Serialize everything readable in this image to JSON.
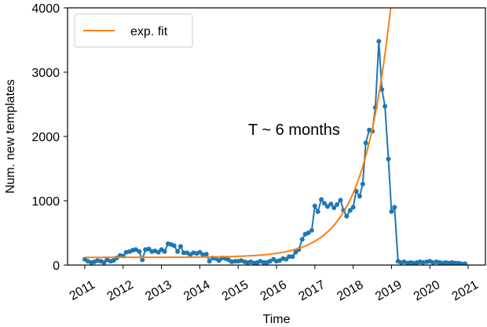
{
  "chart_data": {
    "type": "line",
    "xlabel": "Time",
    "ylabel": "Num. new templates",
    "xlim": [
      2010.55,
      2021.45
    ],
    "ylim": [
      0,
      4000
    ],
    "xticks": [
      2011,
      2012,
      2013,
      2014,
      2015,
      2016,
      2017,
      2018,
      2019,
      2020,
      2021
    ],
    "xtick_labels": [
      "2011",
      "2012",
      "2013",
      "2014",
      "2015",
      "2016",
      "2017",
      "2018",
      "2019",
      "2020",
      "2021"
    ],
    "yticks": [
      0,
      1000,
      2000,
      3000,
      4000
    ],
    "ytick_labels": [
      "0",
      "1000",
      "2000",
      "3000",
      "4000"
    ],
    "annotation": "T ~ 6 months",
    "legend": {
      "position": "top-left",
      "entries": [
        "exp. fit"
      ]
    },
    "grid": false,
    "series": [
      {
        "color": "#1f77b4",
        "style": "line+markers",
        "points": [
          [
            2011.0,
            90
          ],
          [
            2011.08,
            60
          ],
          [
            2011.17,
            40
          ],
          [
            2011.25,
            50
          ],
          [
            2011.33,
            70
          ],
          [
            2011.42,
            60
          ],
          [
            2011.5,
            40
          ],
          [
            2011.58,
            80
          ],
          [
            2011.67,
            60
          ],
          [
            2011.75,
            70
          ],
          [
            2011.83,
            110
          ],
          [
            2011.92,
            150
          ],
          [
            2012.0,
            140
          ],
          [
            2012.08,
            200
          ],
          [
            2012.17,
            210
          ],
          [
            2012.25,
            230
          ],
          [
            2012.33,
            240
          ],
          [
            2012.42,
            210
          ],
          [
            2012.5,
            80
          ],
          [
            2012.58,
            240
          ],
          [
            2012.67,
            250
          ],
          [
            2012.75,
            210
          ],
          [
            2012.83,
            220
          ],
          [
            2012.92,
            200
          ],
          [
            2013.0,
            240
          ],
          [
            2013.08,
            210
          ],
          [
            2013.17,
            330
          ],
          [
            2013.25,
            320
          ],
          [
            2013.33,
            300
          ],
          [
            2013.42,
            210
          ],
          [
            2013.5,
            290
          ],
          [
            2013.58,
            190
          ],
          [
            2013.67,
            190
          ],
          [
            2013.75,
            160
          ],
          [
            2013.83,
            190
          ],
          [
            2013.92,
            180
          ],
          [
            2014.0,
            200
          ],
          [
            2014.08,
            160
          ],
          [
            2014.17,
            170
          ],
          [
            2014.25,
            60
          ],
          [
            2014.33,
            110
          ],
          [
            2014.42,
            100
          ],
          [
            2014.5,
            70
          ],
          [
            2014.58,
            110
          ],
          [
            2014.67,
            100
          ],
          [
            2014.75,
            80
          ],
          [
            2014.83,
            50
          ],
          [
            2014.92,
            60
          ],
          [
            2015.0,
            60
          ],
          [
            2015.08,
            70
          ],
          [
            2015.17,
            50
          ],
          [
            2015.25,
            40
          ],
          [
            2015.33,
            50
          ],
          [
            2015.42,
            30
          ],
          [
            2015.5,
            40
          ],
          [
            2015.58,
            60
          ],
          [
            2015.67,
            40
          ],
          [
            2015.75,
            40
          ],
          [
            2015.83,
            60
          ],
          [
            2015.92,
            90
          ],
          [
            2016.0,
            60
          ],
          [
            2016.08,
            70
          ],
          [
            2016.17,
            100
          ],
          [
            2016.25,
            90
          ],
          [
            2016.33,
            130
          ],
          [
            2016.42,
            130
          ],
          [
            2016.5,
            200
          ],
          [
            2016.58,
            240
          ],
          [
            2016.67,
            400
          ],
          [
            2016.75,
            480
          ],
          [
            2016.83,
            500
          ],
          [
            2016.92,
            540
          ],
          [
            2017.0,
            920
          ],
          [
            2017.08,
            830
          ],
          [
            2017.17,
            1020
          ],
          [
            2017.25,
            960
          ],
          [
            2017.33,
            910
          ],
          [
            2017.42,
            950
          ],
          [
            2017.5,
            890
          ],
          [
            2017.58,
            940
          ],
          [
            2017.67,
            1010
          ],
          [
            2017.75,
            850
          ],
          [
            2017.83,
            760
          ],
          [
            2017.92,
            850
          ],
          [
            2018.0,
            900
          ],
          [
            2018.08,
            1150
          ],
          [
            2018.17,
            1070
          ],
          [
            2018.25,
            1260
          ],
          [
            2018.33,
            1900
          ],
          [
            2018.42,
            2100
          ],
          [
            2018.5,
            2080
          ],
          [
            2018.58,
            2450
          ],
          [
            2018.67,
            3480
          ],
          [
            2018.75,
            2730
          ],
          [
            2018.83,
            2470
          ],
          [
            2018.92,
            1650
          ],
          [
            2019.0,
            830
          ],
          [
            2019.08,
            900
          ],
          [
            2019.17,
            60
          ],
          [
            2019.25,
            40
          ],
          [
            2019.33,
            50
          ],
          [
            2019.42,
            30
          ],
          [
            2019.5,
            40
          ],
          [
            2019.58,
            30
          ],
          [
            2019.67,
            40
          ],
          [
            2019.75,
            50
          ],
          [
            2019.83,
            40
          ],
          [
            2019.92,
            50
          ],
          [
            2020.0,
            60
          ],
          [
            2020.08,
            40
          ],
          [
            2020.17,
            50
          ],
          [
            2020.25,
            40
          ],
          [
            2020.33,
            30
          ],
          [
            2020.42,
            40
          ],
          [
            2020.5,
            30
          ],
          [
            2020.58,
            40
          ],
          [
            2020.67,
            30
          ],
          [
            2020.75,
            30
          ],
          [
            2020.83,
            20
          ],
          [
            2020.92,
            20
          ]
        ]
      },
      {
        "name": "exp. fit",
        "color": "#ff7f0e",
        "style": "line",
        "model": {
          "baseline": 120,
          "amplitude": 1000,
          "x0": 2018.0,
          "half_time_years": 0.5
        }
      }
    ]
  }
}
